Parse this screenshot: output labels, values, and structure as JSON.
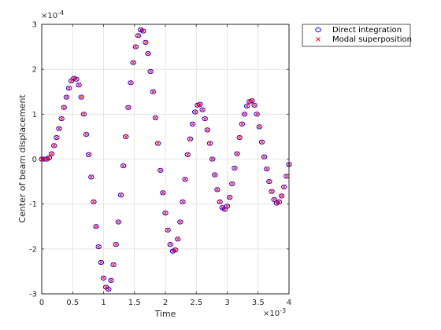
{
  "chart_data": {
    "type": "scatter",
    "title": "",
    "xlabel": "Time",
    "ylabel": "Center of beam displacement",
    "x_multiplier_label": "×10",
    "x_multiplier_exp": "-3",
    "y_multiplier_label": "×10",
    "y_multiplier_exp": "-4",
    "xlim": [
      0,
      4
    ],
    "ylim": [
      -3,
      3
    ],
    "xticks": [
      0,
      0.5,
      1,
      1.5,
      2,
      2.5,
      3,
      3.5,
      4
    ],
    "xtick_labels": [
      "0",
      "0.5",
      "1",
      "1.5",
      "2",
      "2.5",
      "3",
      "3.5",
      "4"
    ],
    "yticks": [
      -3,
      -2,
      -1,
      0,
      1,
      2,
      3
    ],
    "ytick_labels": [
      "-3",
      "-2",
      "-1",
      "0",
      "1",
      "2",
      "3"
    ],
    "grid": true,
    "legend_placement": "outside-top-right",
    "series": [
      {
        "name": "Direct integration",
        "marker": "circle",
        "color": "#0000ff",
        "x": [
          0.0,
          0.04,
          0.08,
          0.12,
          0.16,
          0.2,
          0.24,
          0.28,
          0.32,
          0.36,
          0.4,
          0.44,
          0.48,
          0.52,
          0.56,
          0.6,
          0.64,
          0.68,
          0.72,
          0.76,
          0.8,
          0.84,
          0.88,
          0.92,
          0.96,
          1.0,
          1.04,
          1.08,
          1.12,
          1.16,
          1.2,
          1.24,
          1.28,
          1.32,
          1.36,
          1.4,
          1.44,
          1.48,
          1.52,
          1.56,
          1.6,
          1.64,
          1.68,
          1.72,
          1.76,
          1.8,
          1.84,
          1.88,
          1.92,
          1.96,
          2.0,
          2.04,
          2.08,
          2.12,
          2.16,
          2.2,
          2.24,
          2.28,
          2.32,
          2.36,
          2.4,
          2.44,
          2.48,
          2.52,
          2.56,
          2.6,
          2.64,
          2.68,
          2.72,
          2.76,
          2.8,
          2.84,
          2.88,
          2.92,
          2.96,
          3.0,
          3.04,
          3.08,
          3.12,
          3.16,
          3.2,
          3.24,
          3.28,
          3.32,
          3.36,
          3.4,
          3.44,
          3.48,
          3.52,
          3.56,
          3.6,
          3.64,
          3.68,
          3.72,
          3.76,
          3.8,
          3.84,
          3.88,
          3.92,
          3.96,
          4.0
        ],
        "y": [
          0.0,
          0.0,
          0.0,
          0.03,
          0.12,
          0.3,
          0.48,
          0.68,
          0.9,
          1.15,
          1.38,
          1.58,
          1.74,
          1.8,
          1.78,
          1.65,
          1.38,
          1.0,
          0.55,
          0.1,
          -0.4,
          -0.95,
          -1.5,
          -1.95,
          -2.3,
          -2.65,
          -2.85,
          -2.9,
          -2.7,
          -2.35,
          -1.9,
          -1.4,
          -0.8,
          -0.15,
          0.5,
          1.15,
          1.7,
          2.15,
          2.5,
          2.75,
          2.88,
          2.85,
          2.6,
          2.35,
          1.95,
          1.5,
          0.92,
          0.35,
          -0.25,
          -0.75,
          -1.2,
          -1.58,
          -1.9,
          -2.05,
          -2.02,
          -1.78,
          -1.4,
          -0.95,
          -0.45,
          0.1,
          0.45,
          0.78,
          1.05,
          1.2,
          1.22,
          1.1,
          0.9,
          0.65,
          0.35,
          0.0,
          -0.35,
          -0.68,
          -0.95,
          -1.08,
          -1.12,
          -1.05,
          -0.85,
          -0.55,
          -0.2,
          0.12,
          0.48,
          0.78,
          1.0,
          1.18,
          1.28,
          1.3,
          1.2,
          1.0,
          0.72,
          0.38,
          0.05,
          -0.22,
          -0.5,
          -0.72,
          -0.9,
          -0.98,
          -0.95,
          -0.82,
          -0.62,
          -0.38,
          -0.12
        ]
      },
      {
        "name": "Modal superposition",
        "marker": "x",
        "color": "#ff0000",
        "x": [
          0.0,
          0.04,
          0.08,
          0.12,
          0.16,
          0.2,
          0.24,
          0.28,
          0.32,
          0.36,
          0.4,
          0.44,
          0.48,
          0.52,
          0.56,
          0.6,
          0.64,
          0.68,
          0.72,
          0.76,
          0.8,
          0.84,
          0.88,
          0.92,
          0.96,
          1.0,
          1.04,
          1.08,
          1.12,
          1.16,
          1.2,
          1.24,
          1.28,
          1.32,
          1.36,
          1.4,
          1.44,
          1.48,
          1.52,
          1.56,
          1.6,
          1.64,
          1.68,
          1.72,
          1.76,
          1.8,
          1.84,
          1.88,
          1.92,
          1.96,
          2.0,
          2.04,
          2.08,
          2.12,
          2.16,
          2.2,
          2.24,
          2.28,
          2.32,
          2.36,
          2.4,
          2.44,
          2.48,
          2.52,
          2.56,
          2.6,
          2.64,
          2.68,
          2.72,
          2.76,
          2.8,
          2.84,
          2.88,
          2.92,
          2.96,
          3.0,
          3.04,
          3.08,
          3.12,
          3.16,
          3.2,
          3.24,
          3.28,
          3.32,
          3.36,
          3.4,
          3.44,
          3.48,
          3.52,
          3.56,
          3.6,
          3.64,
          3.68,
          3.72,
          3.76,
          3.8,
          3.84,
          3.88,
          3.92,
          3.96,
          4.0
        ],
        "y": [
          0.0,
          0.0,
          0.0,
          0.03,
          0.12,
          0.3,
          0.48,
          0.68,
          0.9,
          1.15,
          1.38,
          1.58,
          1.74,
          1.8,
          1.78,
          1.65,
          1.38,
          1.0,
          0.55,
          0.1,
          -0.4,
          -0.95,
          -1.5,
          -1.95,
          -2.3,
          -2.65,
          -2.85,
          -2.9,
          -2.7,
          -2.35,
          -1.9,
          -1.4,
          -0.8,
          -0.15,
          0.5,
          1.15,
          1.7,
          2.15,
          2.5,
          2.75,
          2.88,
          2.85,
          2.6,
          2.35,
          1.95,
          1.5,
          0.92,
          0.35,
          -0.25,
          -0.75,
          -1.2,
          -1.58,
          -1.9,
          -2.05,
          -2.02,
          -1.78,
          -1.4,
          -0.95,
          -0.45,
          0.1,
          0.45,
          0.78,
          1.05,
          1.2,
          1.22,
          1.1,
          0.9,
          0.65,
          0.35,
          0.0,
          -0.35,
          -0.68,
          -0.95,
          -1.08,
          -1.12,
          -1.05,
          -0.85,
          -0.55,
          -0.2,
          0.12,
          0.48,
          0.78,
          1.0,
          1.18,
          1.28,
          1.3,
          1.2,
          1.0,
          0.72,
          0.38,
          0.05,
          -0.22,
          -0.5,
          -0.72,
          -0.9,
          -0.98,
          -0.95,
          -0.82,
          -0.62,
          -0.38,
          -0.12
        ]
      }
    ]
  },
  "colors": {
    "axis": "#262626",
    "grid": "#dfdfdf",
    "series_1": "#0000ff",
    "series_2": "#ff0000"
  }
}
